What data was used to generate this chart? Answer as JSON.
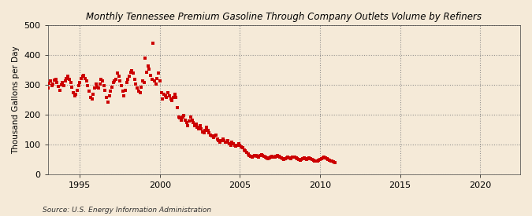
{
  "title": "Monthly Tennessee Premium Gasoline Through Company Outlets Volume by Refiners",
  "ylabel": "Thousand Gallons per Day",
  "source": "Source: U.S. Energy Information Administration",
  "bg_color": "#f5ead8",
  "dot_color": "#cc0000",
  "dot_size": 6,
  "xlim": [
    1993.0,
    2022.5
  ],
  "ylim": [
    0,
    500
  ],
  "yticks": [
    0,
    100,
    200,
    300,
    400,
    500
  ],
  "xticks": [
    1995,
    2000,
    2005,
    2010,
    2015,
    2020
  ],
  "data": [
    [
      1993.0,
      288
    ],
    [
      1993.08,
      305
    ],
    [
      1993.17,
      312
    ],
    [
      1993.25,
      298
    ],
    [
      1993.33,
      302
    ],
    [
      1993.42,
      315
    ],
    [
      1993.5,
      318
    ],
    [
      1993.58,
      308
    ],
    [
      1993.67,
      295
    ],
    [
      1993.75,
      282
    ],
    [
      1993.83,
      300
    ],
    [
      1993.92,
      308
    ],
    [
      1994.0,
      298
    ],
    [
      1994.08,
      312
    ],
    [
      1994.17,
      320
    ],
    [
      1994.25,
      328
    ],
    [
      1994.33,
      318
    ],
    [
      1994.42,
      308
    ],
    [
      1994.5,
      292
    ],
    [
      1994.58,
      272
    ],
    [
      1994.67,
      262
    ],
    [
      1994.75,
      268
    ],
    [
      1994.83,
      282
    ],
    [
      1994.92,
      298
    ],
    [
      1995.0,
      308
    ],
    [
      1995.08,
      322
    ],
    [
      1995.17,
      328
    ],
    [
      1995.25,
      332
    ],
    [
      1995.33,
      322
    ],
    [
      1995.42,
      312
    ],
    [
      1995.5,
      298
    ],
    [
      1995.58,
      278
    ],
    [
      1995.67,
      258
    ],
    [
      1995.75,
      252
    ],
    [
      1995.83,
      268
    ],
    [
      1995.92,
      288
    ],
    [
      1996.0,
      302
    ],
    [
      1996.08,
      292
    ],
    [
      1996.17,
      288
    ],
    [
      1996.25,
      302
    ],
    [
      1996.33,
      318
    ],
    [
      1996.42,
      312
    ],
    [
      1996.5,
      298
    ],
    [
      1996.58,
      282
    ],
    [
      1996.67,
      258
    ],
    [
      1996.75,
      242
    ],
    [
      1996.83,
      262
    ],
    [
      1996.92,
      278
    ],
    [
      1997.0,
      292
    ],
    [
      1997.08,
      308
    ],
    [
      1997.17,
      312
    ],
    [
      1997.25,
      318
    ],
    [
      1997.33,
      338
    ],
    [
      1997.42,
      328
    ],
    [
      1997.5,
      312
    ],
    [
      1997.58,
      298
    ],
    [
      1997.67,
      278
    ],
    [
      1997.75,
      262
    ],
    [
      1997.83,
      282
    ],
    [
      1997.92,
      308
    ],
    [
      1998.0,
      318
    ],
    [
      1998.08,
      328
    ],
    [
      1998.17,
      342
    ],
    [
      1998.25,
      348
    ],
    [
      1998.33,
      338
    ],
    [
      1998.42,
      318
    ],
    [
      1998.5,
      302
    ],
    [
      1998.58,
      288
    ],
    [
      1998.67,
      278
    ],
    [
      1998.75,
      272
    ],
    [
      1998.83,
      292
    ],
    [
      1998.92,
      312
    ],
    [
      1999.0,
      308
    ],
    [
      1999.08,
      388
    ],
    [
      1999.17,
      342
    ],
    [
      1999.25,
      362
    ],
    [
      1999.33,
      352
    ],
    [
      1999.42,
      332
    ],
    [
      1999.5,
      318
    ],
    [
      1999.58,
      440
    ],
    [
      1999.67,
      312
    ],
    [
      1999.75,
      302
    ],
    [
      1999.83,
      322
    ],
    [
      1999.92,
      338
    ],
    [
      2000.0,
      312
    ],
    [
      2000.08,
      272
    ],
    [
      2000.17,
      252
    ],
    [
      2000.25,
      268
    ],
    [
      2000.33,
      262
    ],
    [
      2000.42,
      258
    ],
    [
      2000.5,
      272
    ],
    [
      2000.58,
      262
    ],
    [
      2000.67,
      252
    ],
    [
      2000.75,
      248
    ],
    [
      2000.83,
      258
    ],
    [
      2000.92,
      268
    ],
    [
      2001.0,
      258
    ],
    [
      2001.08,
      222
    ],
    [
      2001.17,
      192
    ],
    [
      2001.25,
      188
    ],
    [
      2001.33,
      182
    ],
    [
      2001.42,
      192
    ],
    [
      2001.5,
      198
    ],
    [
      2001.58,
      182
    ],
    [
      2001.67,
      172
    ],
    [
      2001.75,
      162
    ],
    [
      2001.83,
      178
    ],
    [
      2001.92,
      192
    ],
    [
      2002.0,
      182
    ],
    [
      2002.08,
      172
    ],
    [
      2002.17,
      162
    ],
    [
      2002.25,
      168
    ],
    [
      2002.33,
      158
    ],
    [
      2002.42,
      152
    ],
    [
      2002.5,
      162
    ],
    [
      2002.58,
      152
    ],
    [
      2002.67,
      142
    ],
    [
      2002.75,
      138
    ],
    [
      2002.83,
      148
    ],
    [
      2002.92,
      158
    ],
    [
      2003.0,
      148
    ],
    [
      2003.08,
      138
    ],
    [
      2003.17,
      132
    ],
    [
      2003.25,
      128
    ],
    [
      2003.33,
      122
    ],
    [
      2003.42,
      128
    ],
    [
      2003.5,
      132
    ],
    [
      2003.58,
      118
    ],
    [
      2003.67,
      112
    ],
    [
      2003.75,
      108
    ],
    [
      2003.83,
      112
    ],
    [
      2003.92,
      118
    ],
    [
      2004.0,
      112
    ],
    [
      2004.08,
      108
    ],
    [
      2004.17,
      108
    ],
    [
      2004.25,
      112
    ],
    [
      2004.33,
      102
    ],
    [
      2004.42,
      98
    ],
    [
      2004.5,
      108
    ],
    [
      2004.58,
      102
    ],
    [
      2004.67,
      98
    ],
    [
      2004.75,
      95
    ],
    [
      2004.83,
      98
    ],
    [
      2004.92,
      102
    ],
    [
      2005.0,
      98
    ],
    [
      2005.08,
      92
    ],
    [
      2005.17,
      88
    ],
    [
      2005.25,
      82
    ],
    [
      2005.33,
      78
    ],
    [
      2005.42,
      72
    ],
    [
      2005.5,
      68
    ],
    [
      2005.58,
      62
    ],
    [
      2005.67,
      60
    ],
    [
      2005.75,
      58
    ],
    [
      2005.83,
      60
    ],
    [
      2005.92,
      62
    ],
    [
      2006.0,
      62
    ],
    [
      2006.08,
      60
    ],
    [
      2006.17,
      58
    ],
    [
      2006.25,
      62
    ],
    [
      2006.33,
      65
    ],
    [
      2006.42,
      62
    ],
    [
      2006.5,
      60
    ],
    [
      2006.58,
      58
    ],
    [
      2006.67,
      55
    ],
    [
      2006.75,
      52
    ],
    [
      2006.83,
      54
    ],
    [
      2006.92,
      56
    ],
    [
      2007.0,
      60
    ],
    [
      2007.08,
      58
    ],
    [
      2007.17,
      56
    ],
    [
      2007.25,
      60
    ],
    [
      2007.33,
      62
    ],
    [
      2007.42,
      60
    ],
    [
      2007.5,
      58
    ],
    [
      2007.58,
      55
    ],
    [
      2007.67,
      52
    ],
    [
      2007.75,
      50
    ],
    [
      2007.83,
      52
    ],
    [
      2007.92,
      54
    ],
    [
      2008.0,
      56
    ],
    [
      2008.08,
      54
    ],
    [
      2008.17,
      52
    ],
    [
      2008.25,
      56
    ],
    [
      2008.33,
      58
    ],
    [
      2008.42,
      56
    ],
    [
      2008.5,
      54
    ],
    [
      2008.58,
      52
    ],
    [
      2008.67,
      50
    ],
    [
      2008.75,
      48
    ],
    [
      2008.83,
      50
    ],
    [
      2008.92,
      52
    ],
    [
      2009.0,
      54
    ],
    [
      2009.08,
      52
    ],
    [
      2009.17,
      50
    ],
    [
      2009.25,
      52
    ],
    [
      2009.33,
      54
    ],
    [
      2009.42,
      52
    ],
    [
      2009.5,
      50
    ],
    [
      2009.58,
      48
    ],
    [
      2009.67,
      45
    ],
    [
      2009.75,
      43
    ],
    [
      2009.83,
      45
    ],
    [
      2009.92,
      46
    ],
    [
      2010.0,
      50
    ],
    [
      2010.08,
      52
    ],
    [
      2010.17,
      54
    ],
    [
      2010.25,
      56
    ],
    [
      2010.33,
      54
    ],
    [
      2010.42,
      52
    ],
    [
      2010.5,
      50
    ],
    [
      2010.58,
      48
    ],
    [
      2010.67,
      45
    ],
    [
      2010.75,
      43
    ],
    [
      2010.83,
      42
    ],
    [
      2010.92,
      40
    ]
  ]
}
